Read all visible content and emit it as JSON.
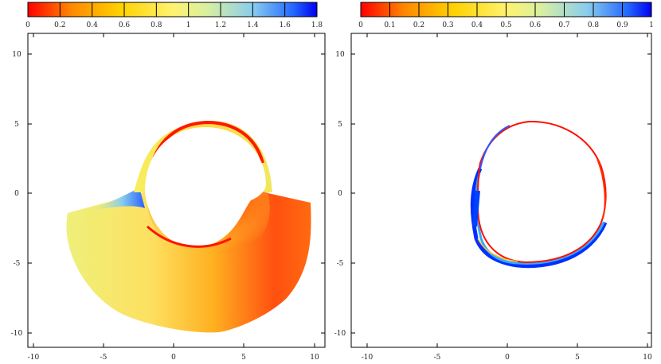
{
  "chart_data": [
    {
      "type": "heatmap",
      "title": "",
      "xlabel": "",
      "ylabel": "",
      "xlim": [
        -10,
        10
      ],
      "ylim": [
        -10,
        10
      ],
      "xticks": [
        "-10",
        "-5",
        "0",
        "5",
        "10"
      ],
      "yticks": [
        "10",
        "5",
        "0",
        "-5",
        "-10"
      ],
      "colorbar": {
        "range": [
          0,
          1.8
        ],
        "ticks": [
          "0",
          "0.2",
          "0.4",
          "0.6",
          "0.8",
          "1",
          "1.2",
          "1.4",
          "1.6",
          "1.8"
        ],
        "colors": [
          "#ff0000",
          "#ff8800",
          "#ffd200",
          "#fff36e",
          "#d8f0a0",
          "#88ccee",
          "#2266ff",
          "#0000ee"
        ]
      },
      "cavity": {
        "cx": 0,
        "cy": 0,
        "r": 5
      },
      "regions": [
        {
          "name": "outer-field",
          "value": 1.0,
          "color": "#eef07a"
        },
        {
          "name": "upper-arc",
          "value": 0.7,
          "color": "#ffe040"
        },
        {
          "name": "lower-wake",
          "value": 0.0,
          "color": "#ff1e00"
        },
        {
          "name": "left-tip",
          "value": 1.6,
          "color": "#3a7bff"
        }
      ]
    },
    {
      "type": "heatmap",
      "title": "",
      "xlabel": "",
      "ylabel": "",
      "xlim": [
        -10,
        10
      ],
      "ylim": [
        -10,
        10
      ],
      "xticks": [
        "-10",
        "-5",
        "0",
        "5",
        "10"
      ],
      "yticks": [
        "10",
        "5",
        "0",
        "-5",
        "-10"
      ],
      "colorbar": {
        "range": [
          0,
          1
        ],
        "ticks": [
          "0",
          "0.1",
          "0.2",
          "0.3",
          "0.4",
          "0.5",
          "0.6",
          "0.7",
          "0.8",
          "0.9",
          "1"
        ],
        "colors": [
          "#ff0000",
          "#ff8800",
          "#ffd200",
          "#fff36e",
          "#d8f0a0",
          "#88ccee",
          "#2266ff",
          "#0000ee"
        ]
      },
      "cavity": {
        "cx": 0,
        "cy": 0,
        "r": 5
      },
      "rings": [
        {
          "name": "red-ring",
          "value": 0.0,
          "color": "#ff0000"
        },
        {
          "name": "cyan-ring",
          "value": 0.7,
          "color": "#33aaff"
        },
        {
          "name": "blue-ring",
          "value": 0.95,
          "color": "#0033ff"
        }
      ]
    }
  ]
}
